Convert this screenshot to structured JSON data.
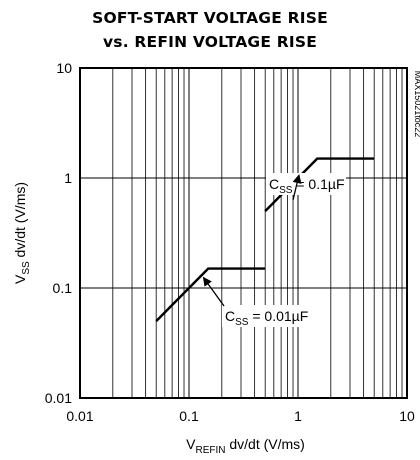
{
  "chart_data": {
    "type": "line",
    "title_line1": "SOFT-START VOLTAGE RISE",
    "title_line2": "vs. REFIN VOLTAGE RISE",
    "xlabel": {
      "base": "V",
      "sub": "REFIN",
      "rest": " dv/dt (V/ms)"
    },
    "ylabel": {
      "base": "V",
      "sub": "SS",
      "rest": " dv/dt (V/ms)"
    },
    "x_scale": "log",
    "y_scale": "log",
    "xlim": [
      0.01,
      10
    ],
    "ylim": [
      0.01,
      10
    ],
    "x_ticks": [
      "0.01",
      "0.1",
      "1",
      "10"
    ],
    "y_ticks": [
      "0.01",
      "0.1",
      "1",
      "10"
    ],
    "grid": "vertical minor lines and horizontal decade lines",
    "series": [
      {
        "name": "CSS = 0.01µF",
        "x": [
          0.05,
          0.15,
          0.5
        ],
        "y": [
          0.05,
          0.15,
          0.15
        ]
      },
      {
        "name": "CSS = 0.1µF",
        "x": [
          0.5,
          1.5,
          5
        ],
        "y": [
          0.5,
          1.5,
          1.5
        ]
      }
    ],
    "annotations": [
      {
        "base": "C",
        "sub": "SS",
        "rest": " = 0.1µF",
        "points_to_series": 1,
        "points_to": [
          1.0,
          1.0
        ]
      },
      {
        "base": "C",
        "sub": "SS",
        "rest": " = 0.01µF",
        "points_to_series": 0,
        "points_to": [
          0.1,
          0.1
        ]
      }
    ],
    "watermark": "MAX15021toc22"
  }
}
